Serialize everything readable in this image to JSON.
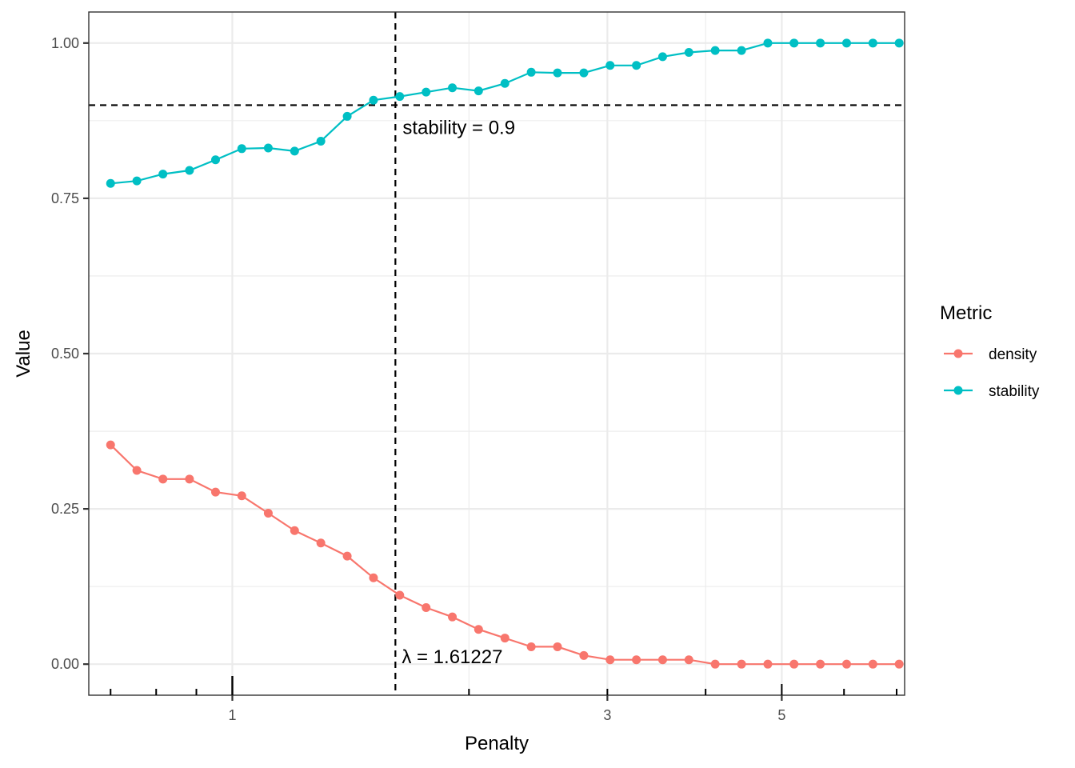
{
  "chart_data": {
    "type": "line",
    "xlabel": "Penalty",
    "ylabel": "Value",
    "x_scale": "log",
    "xlim": [
      0.6567,
      7.166
    ],
    "ylim": [
      -0.05,
      1.05
    ],
    "x_major_ticks": [
      1,
      3,
      5
    ],
    "x_tick_labels": [
      "1",
      "3",
      "5"
    ],
    "y_ticks": [
      0,
      0.25,
      0.5,
      0.75,
      1.0
    ],
    "y_tick_labels": [
      "0.00",
      "0.25",
      "0.50",
      "0.75",
      "1.00"
    ],
    "grid": true,
    "legend": {
      "title": "Metric",
      "position": "right",
      "entries": [
        "density",
        "stability"
      ]
    },
    "x": [
      0.7,
      0.756,
      0.816,
      0.882,
      0.952,
      1.028,
      1.111,
      1.2,
      1.296,
      1.4,
      1.512,
      1.633,
      1.764,
      1.905,
      2.057,
      2.222,
      2.4,
      2.592,
      2.8,
      3.024,
      3.266,
      3.527,
      3.809,
      4.114,
      4.444,
      4.8,
      5.183,
      5.598,
      6.046,
      6.53,
      7.052
    ],
    "series": [
      {
        "name": "density",
        "color": "#F8766D",
        "values": [
          0.353,
          0.312,
          0.298,
          0.298,
          0.277,
          0.271,
          0.243,
          0.215,
          0.195,
          0.174,
          0.139,
          0.111,
          0.091,
          0.076,
          0.056,
          0.042,
          0.028,
          0.028,
          0.014,
          0.007,
          0.007,
          0.007,
          0.007,
          0,
          0,
          0,
          0,
          0,
          0,
          0,
          0
        ]
      },
      {
        "name": "stability",
        "color": "#00BFC4",
        "values": [
          0.774,
          0.778,
          0.789,
          0.795,
          0.812,
          0.83,
          0.831,
          0.826,
          0.842,
          0.882,
          0.908,
          0.914,
          0.921,
          0.928,
          0.923,
          0.935,
          0.953,
          0.952,
          0.952,
          0.964,
          0.964,
          0.978,
          0.985,
          0.988,
          0.988,
          1.0,
          1.0,
          1.0,
          1.0,
          1.0,
          1.0
        ]
      }
    ],
    "reference_lines": {
      "vertical_x": 1.61227,
      "horizontal_y": 0.9
    },
    "annotations": {
      "lambda": "λ = 1.61227",
      "stability": "stability = 0.9"
    }
  }
}
